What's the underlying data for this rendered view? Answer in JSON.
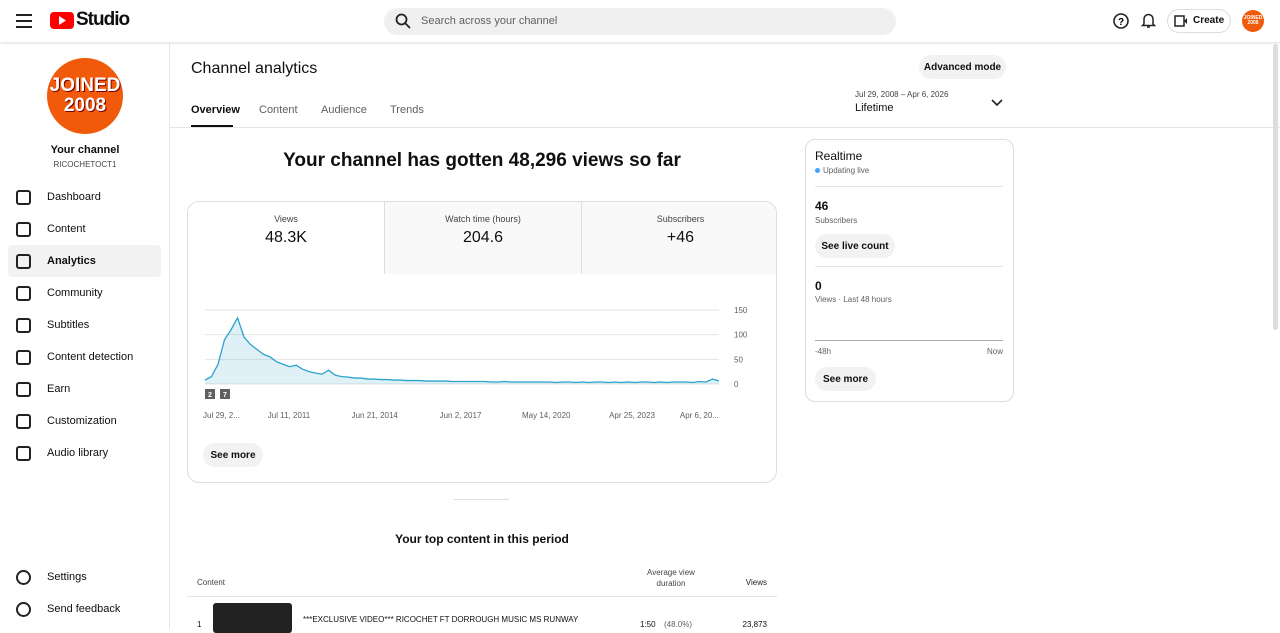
{
  "header": {
    "logo": "Studio",
    "search_placeholder": "Search across your channel",
    "create": "Create",
    "avatar_lines": [
      "JOINED",
      "2008"
    ]
  },
  "sidebar": {
    "channel_title": "Your channel",
    "channel_handle": "RICOCHETOCT1",
    "nav": [
      "Dashboard",
      "Content",
      "Analytics",
      "Community",
      "Subtitles",
      "Content detection",
      "Earn",
      "Customization",
      "Audio library"
    ],
    "bottom": [
      "Settings",
      "Send feedback"
    ]
  },
  "page": {
    "title": "Channel analytics",
    "tabs": [
      "Overview",
      "Content",
      "Audience",
      "Trends"
    ],
    "advanced": "Advanced mode",
    "date_range": "Jul 29, 2008 – Apr 6, 2026",
    "period": "Lifetime",
    "headline": "Your channel has gotten 48,296 views so far",
    "metrics": [
      {
        "label": "Views",
        "value": "48.3K"
      },
      {
        "label": "Watch time (hours)",
        "value": "204.6"
      },
      {
        "label": "Subscribers",
        "value": "+46"
      }
    ],
    "see_more": "See more",
    "top_content": {
      "title": "Your top content in this period",
      "headers": [
        "Content",
        "Average view duration",
        "Views"
      ],
      "rows": [
        {
          "rank": "1",
          "title": "***EXCLUSIVE VIDEO*** RICOCHET FT DORROUGH MUSIC MS RUNWAY",
          "duration": "1:50",
          "percent": "(48.0%)",
          "views": "23,873"
        }
      ]
    }
  },
  "realtime": {
    "title": "Realtime",
    "status": "Updating live",
    "subscribers": "46",
    "subscribers_label": "Subscribers",
    "live_button": "See live count",
    "views": "0",
    "views_label": "Views · Last 48 hours",
    "start": "-48h",
    "end": "Now",
    "see_more": "See more"
  },
  "chart_data": {
    "type": "line",
    "color": "#2ba3cc",
    "x_tick_labels": [
      "Jul 29, 2...",
      "Jul 11, 2011",
      "Jun 21, 2014",
      "Jun 2, 2017",
      "May 14, 2020",
      "Apr 25, 2023",
      "Apr 6, 20..."
    ],
    "values": [
      8,
      15,
      40,
      90,
      110,
      134,
      95,
      80,
      70,
      60,
      55,
      45,
      40,
      35,
      38,
      30,
      25,
      22,
      20,
      28,
      18,
      15,
      14,
      12,
      12,
      10,
      10,
      9,
      9,
      8,
      8,
      7,
      7,
      7,
      6,
      6,
      6,
      6,
      5,
      5,
      5,
      5,
      5,
      5,
      4,
      4,
      5,
      4,
      4,
      4,
      4,
      4,
      4,
      4,
      3,
      4,
      4,
      3,
      4,
      3,
      4,
      4,
      3,
      4,
      3,
      4,
      3,
      4,
      4,
      3,
      4,
      3,
      4,
      4,
      4,
      3,
      5,
      4,
      10,
      6
    ],
    "ylim": [
      0,
      150
    ],
    "yticks": [
      0,
      50,
      100,
      150
    ],
    "grid": true,
    "badges": [
      "2",
      "7"
    ]
  }
}
